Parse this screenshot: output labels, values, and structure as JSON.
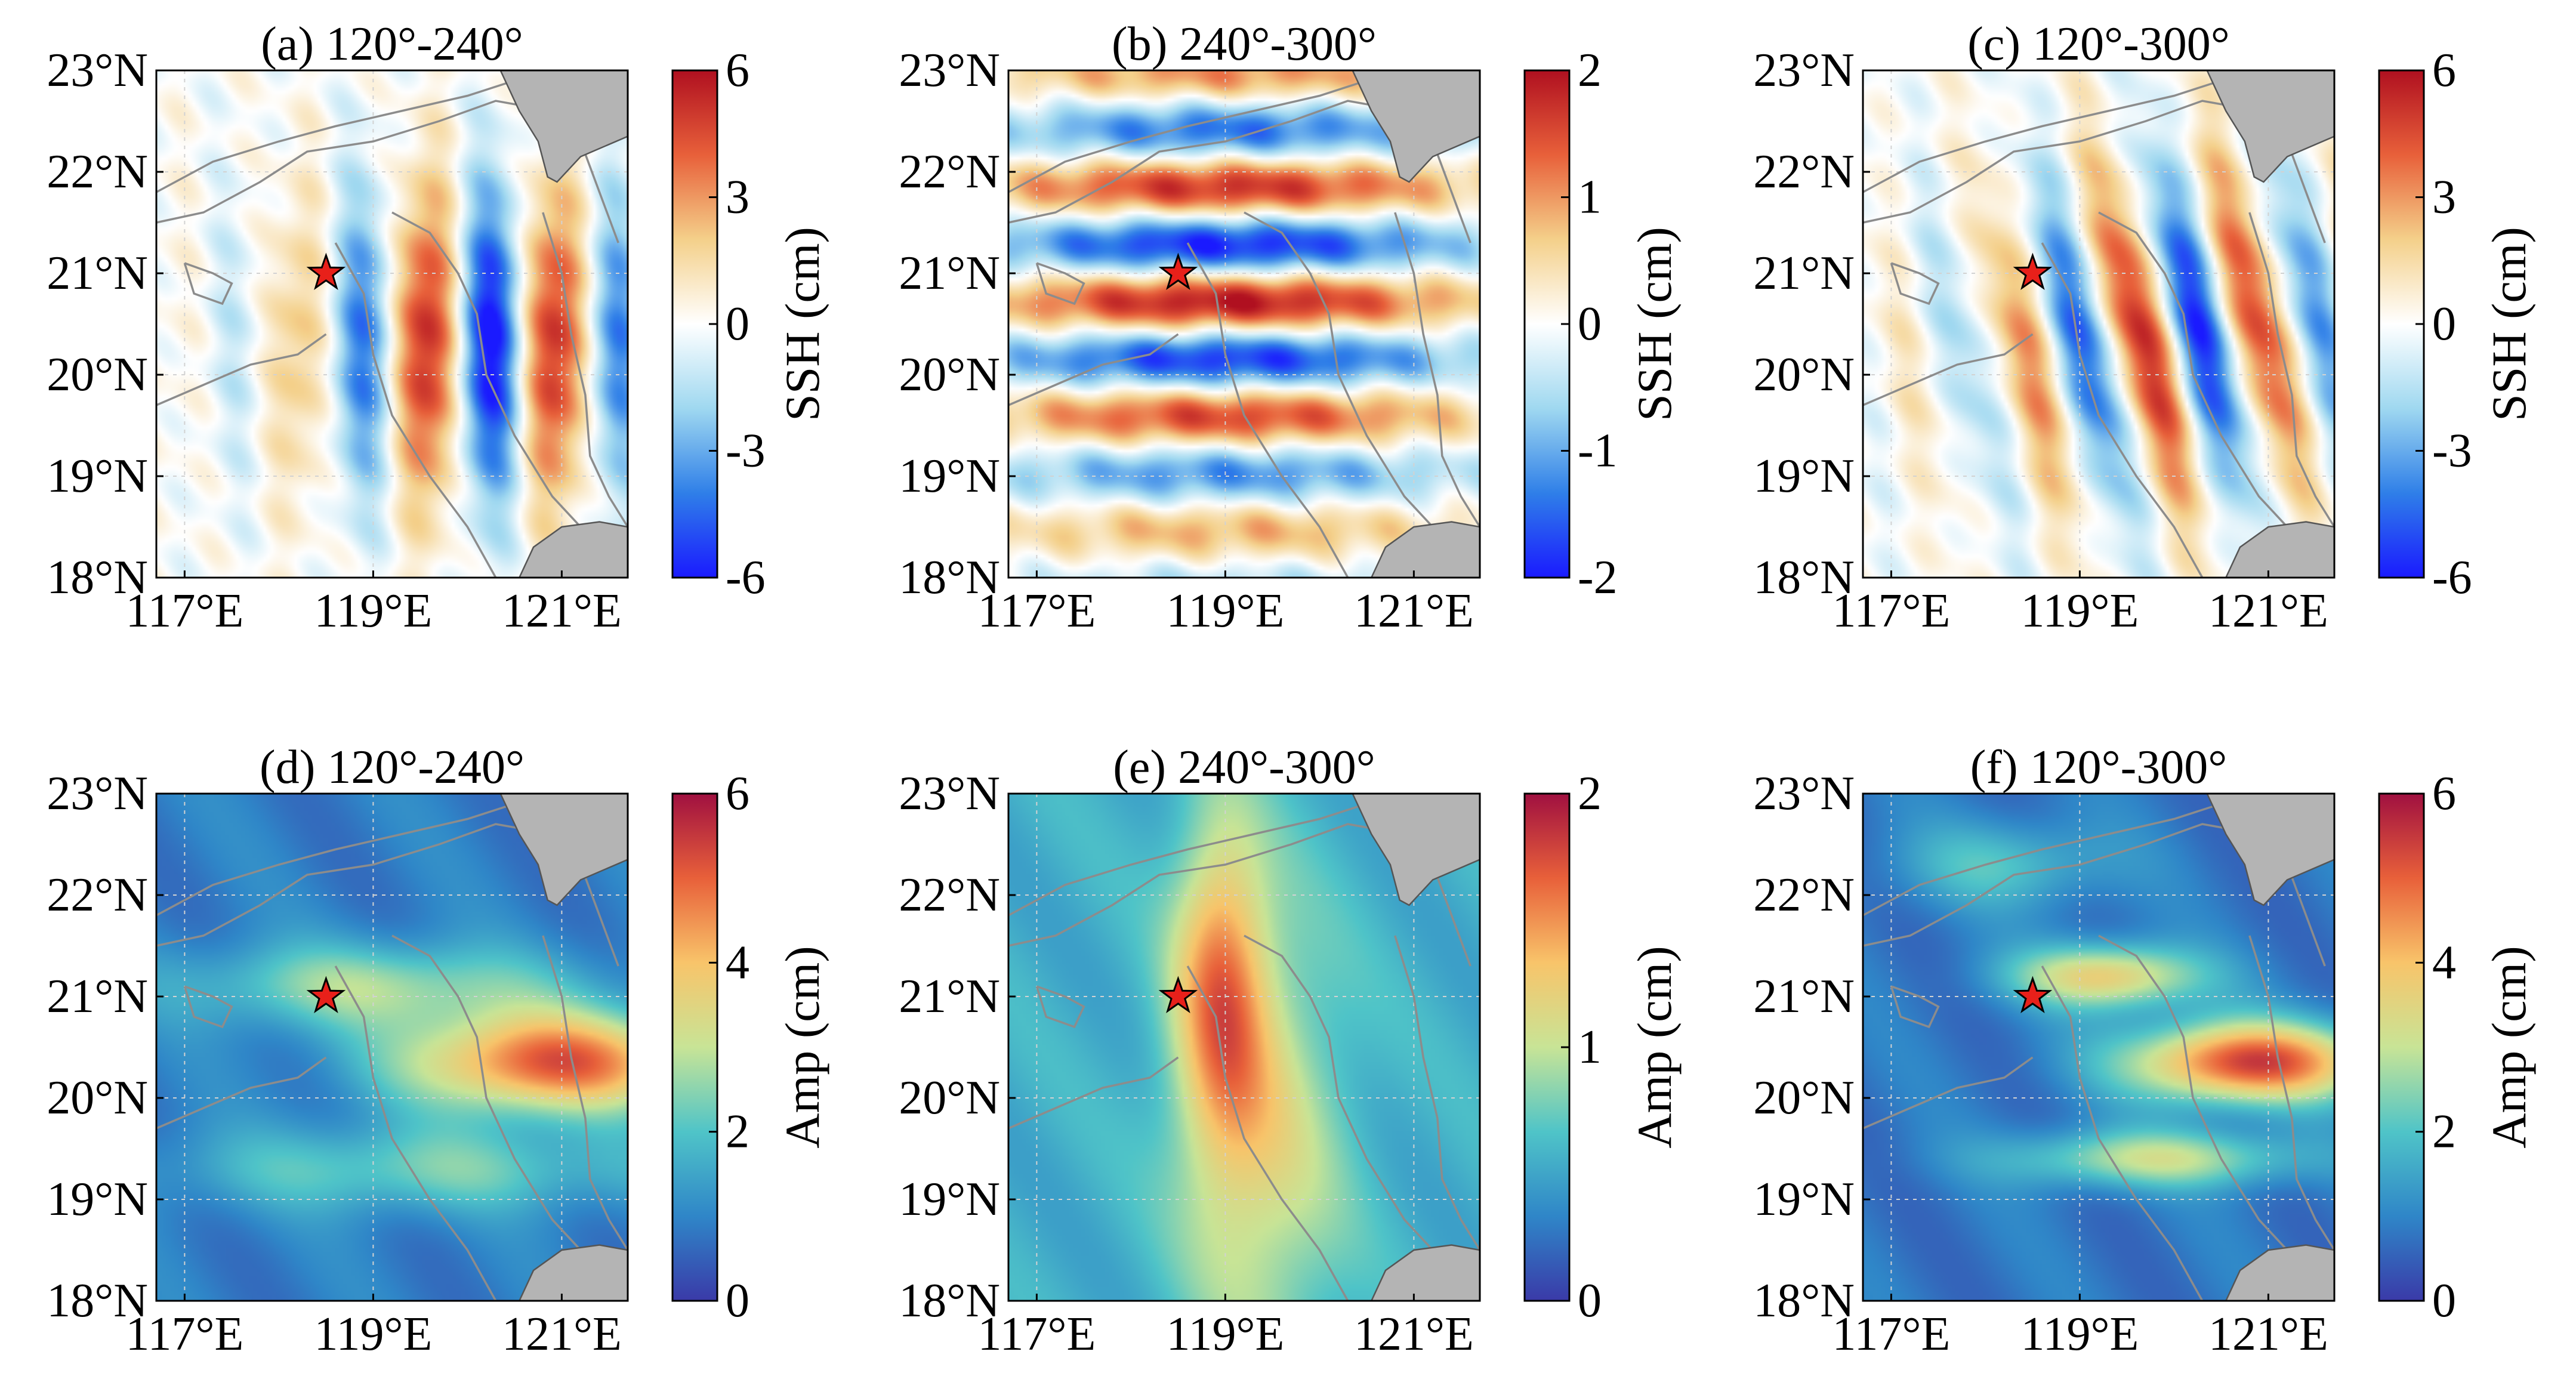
{
  "figure": {
    "description": "Six map panels of internal tide sea surface height (SSH) and amplitude off southern Taiwan"
  },
  "colors": {
    "land": "#b4b4b4",
    "contour": "#8c8c8c",
    "grid": "#d2d2d2",
    "star": "#e8201a",
    "diverging": [
      "#1a1aff",
      "#2f7fe8",
      "#9fd8f0",
      "#ffffff",
      "#f4d08a",
      "#e8603a",
      "#b01020"
    ],
    "sequential": [
      "#3a3aa8",
      "#2f86c8",
      "#4fc4c8",
      "#c8e496",
      "#f8c46a",
      "#e8603a",
      "#a01040"
    ]
  },
  "chart_data": [
    {
      "id": "a",
      "type": "heatmap",
      "title": "(a) 120°-240°",
      "variable": "SSH",
      "colorbar_label": "SSH (cm)",
      "clim": [
        -6,
        6
      ],
      "colorbar_ticks": [
        "6",
        "3",
        "0",
        "-3",
        "-6"
      ],
      "xlim": [
        116.7,
        121.7
      ],
      "ylim": [
        18,
        23
      ],
      "xticks": [
        "117°E",
        "119°E",
        "121°E"
      ],
      "yticks": [
        "23°N",
        "22°N",
        "21°N",
        "20°N",
        "19°N",
        "18°N"
      ],
      "marker": {
        "lon": 118.5,
        "lat": 21.0,
        "symbol": "star"
      },
      "wave": {
        "dir_deg": 180,
        "k": 4.5,
        "amp": 6,
        "cx": 120.2,
        "cy": 20.3,
        "sx": 1.4,
        "sy": 1.1
      }
    },
    {
      "id": "b",
      "type": "heatmap",
      "title": "(b) 240°-300°",
      "variable": "SSH",
      "colorbar_label": "SSH (cm)",
      "clim": [
        -2,
        2
      ],
      "colorbar_ticks": [
        "2",
        "1",
        "0",
        "-1",
        "-2"
      ],
      "xlim": [
        116.7,
        121.7
      ],
      "ylim": [
        18,
        23
      ],
      "xticks": [
        "117°E",
        "119°E",
        "121°E"
      ],
      "yticks": [
        "23°N",
        "22°N",
        "21°N",
        "20°N",
        "19°N",
        "18°N"
      ],
      "marker": {
        "lon": 118.5,
        "lat": 21.0,
        "symbol": "star"
      },
      "wave": {
        "dir_deg": 270,
        "k": 5.5,
        "amp": 1.9,
        "cx": 119.0,
        "cy": 20.9,
        "sx": 1.8,
        "sy": 1.9
      }
    },
    {
      "id": "c",
      "type": "heatmap",
      "title": "(c) 120°-300°",
      "variable": "SSH",
      "colorbar_label": "SSH (cm)",
      "clim": [
        -6,
        6
      ],
      "colorbar_ticks": [
        "6",
        "3",
        "0",
        "-3",
        "-6"
      ],
      "xlim": [
        116.7,
        121.7
      ],
      "ylim": [
        18,
        23
      ],
      "xticks": [
        "117°E",
        "119°E",
        "121°E"
      ],
      "yticks": [
        "23°N",
        "22°N",
        "21°N",
        "20°N",
        "19°N",
        "18°N"
      ],
      "marker": {
        "lon": 118.5,
        "lat": 21.0,
        "symbol": "star"
      },
      "wave": {
        "dir_deg": 195,
        "k": 5.0,
        "amp": 5.5,
        "cx": 120.0,
        "cy": 20.4,
        "sx": 1.5,
        "sy": 1.2
      }
    },
    {
      "id": "d",
      "type": "heatmap",
      "title": "(d) 120°-240°",
      "variable": "Amp",
      "colorbar_label": "Amp (cm)",
      "clim": [
        0,
        6
      ],
      "colorbar_ticks": [
        "6",
        "4",
        "2",
        "0"
      ],
      "xlim": [
        116.7,
        121.7
      ],
      "ylim": [
        18,
        23
      ],
      "xticks": [
        "117°E",
        "119°E",
        "121°E"
      ],
      "yticks": [
        "23°N",
        "22°N",
        "21°N",
        "20°N",
        "19°N",
        "18°N"
      ],
      "marker": {
        "lon": 118.5,
        "lat": 21.0,
        "symbol": "star"
      },
      "bands": [
        {
          "cx": 120.9,
          "cy": 20.35,
          "sx": 1.1,
          "sy": 0.35,
          "amp": 4.2
        },
        {
          "cx": 119.0,
          "cy": 21.1,
          "sx": 1.4,
          "sy": 0.3,
          "amp": 1.8
        },
        {
          "cx": 119.5,
          "cy": 19.3,
          "sx": 1.8,
          "sy": 0.3,
          "amp": 1.4
        }
      ],
      "base": 0.9
    },
    {
      "id": "e",
      "type": "heatmap",
      "title": "(e) 240°-300°",
      "variable": "Amp",
      "colorbar_label": "Amp (cm)",
      "clim": [
        0,
        2
      ],
      "colorbar_ticks": [
        "2",
        "1",
        "0"
      ],
      "xlim": [
        116.7,
        121.7
      ],
      "ylim": [
        18,
        23
      ],
      "xticks": [
        "117°E",
        "119°E",
        "121°E"
      ],
      "yticks": [
        "23°N",
        "22°N",
        "21°N",
        "20°N",
        "19°N",
        "18°N"
      ],
      "marker": {
        "lon": 118.5,
        "lat": 21.0,
        "symbol": "star"
      },
      "bands": [
        {
          "cx": 118.95,
          "cy": 21.1,
          "sx": 0.35,
          "sy": 1.2,
          "amp": 0.9
        },
        {
          "cx": 119.4,
          "cy": 19.5,
          "sx": 0.6,
          "sy": 1.6,
          "amp": 0.55
        }
      ],
      "base": 0.55
    },
    {
      "id": "f",
      "type": "heatmap",
      "title": "(f) 120°-300°",
      "variable": "Amp",
      "colorbar_label": "Amp (cm)",
      "clim": [
        0,
        6
      ],
      "colorbar_ticks": [
        "6",
        "4",
        "2",
        "0"
      ],
      "xlim": [
        116.7,
        121.7
      ],
      "ylim": [
        18,
        23
      ],
      "xticks": [
        "117°E",
        "119°E",
        "121°E"
      ],
      "yticks": [
        "23°N",
        "22°N",
        "21°N",
        "20°N",
        "19°N",
        "18°N"
      ],
      "marker": {
        "lon": 118.5,
        "lat": 21.0,
        "symbol": "star"
      },
      "bands": [
        {
          "cx": 120.8,
          "cy": 20.35,
          "sx": 0.9,
          "sy": 0.28,
          "amp": 4.6
        },
        {
          "cx": 119.3,
          "cy": 21.2,
          "sx": 0.7,
          "sy": 0.22,
          "amp": 3.0
        },
        {
          "cx": 119.8,
          "cy": 19.4,
          "sx": 1.1,
          "sy": 0.2,
          "amp": 2.2
        },
        {
          "cx": 118.2,
          "cy": 22.3,
          "sx": 0.8,
          "sy": 0.3,
          "amp": 1.2
        }
      ],
      "base": 0.8
    }
  ]
}
